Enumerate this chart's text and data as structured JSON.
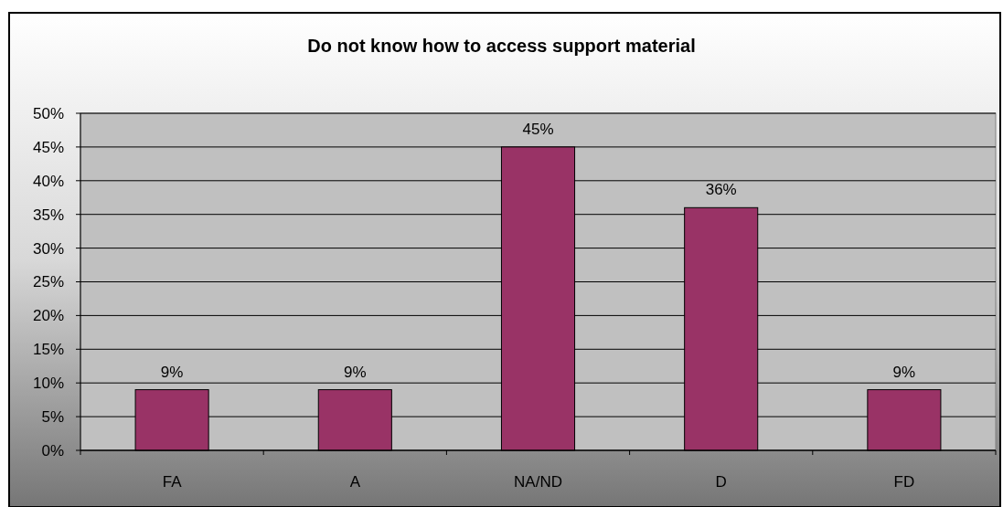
{
  "chart_data": {
    "type": "bar",
    "title": "Do not know how to access support material",
    "categories": [
      "FA",
      "A",
      "NA/ND",
      "D",
      "FD"
    ],
    "values": [
      9,
      9,
      45,
      36,
      9
    ],
    "color": "#993366",
    "ylim": [
      0,
      50
    ],
    "yticks": [
      {
        "value": 0,
        "label": "0%"
      },
      {
        "value": 5,
        "label": "5%"
      },
      {
        "value": 10,
        "label": "10%"
      },
      {
        "value": 15,
        "label": "15%"
      },
      {
        "value": 20,
        "label": "20%"
      },
      {
        "value": 25,
        "label": "25%"
      },
      {
        "value": 30,
        "label": "30%"
      },
      {
        "value": 35,
        "label": "35%"
      },
      {
        "value": 40,
        "label": "40%"
      },
      {
        "value": 45,
        "label": "45%"
      },
      {
        "value": 50,
        "label": "50%"
      }
    ],
    "value_labels": [
      "9%",
      "9%",
      "45%",
      "36%",
      "9%"
    ],
    "grid": "y"
  }
}
